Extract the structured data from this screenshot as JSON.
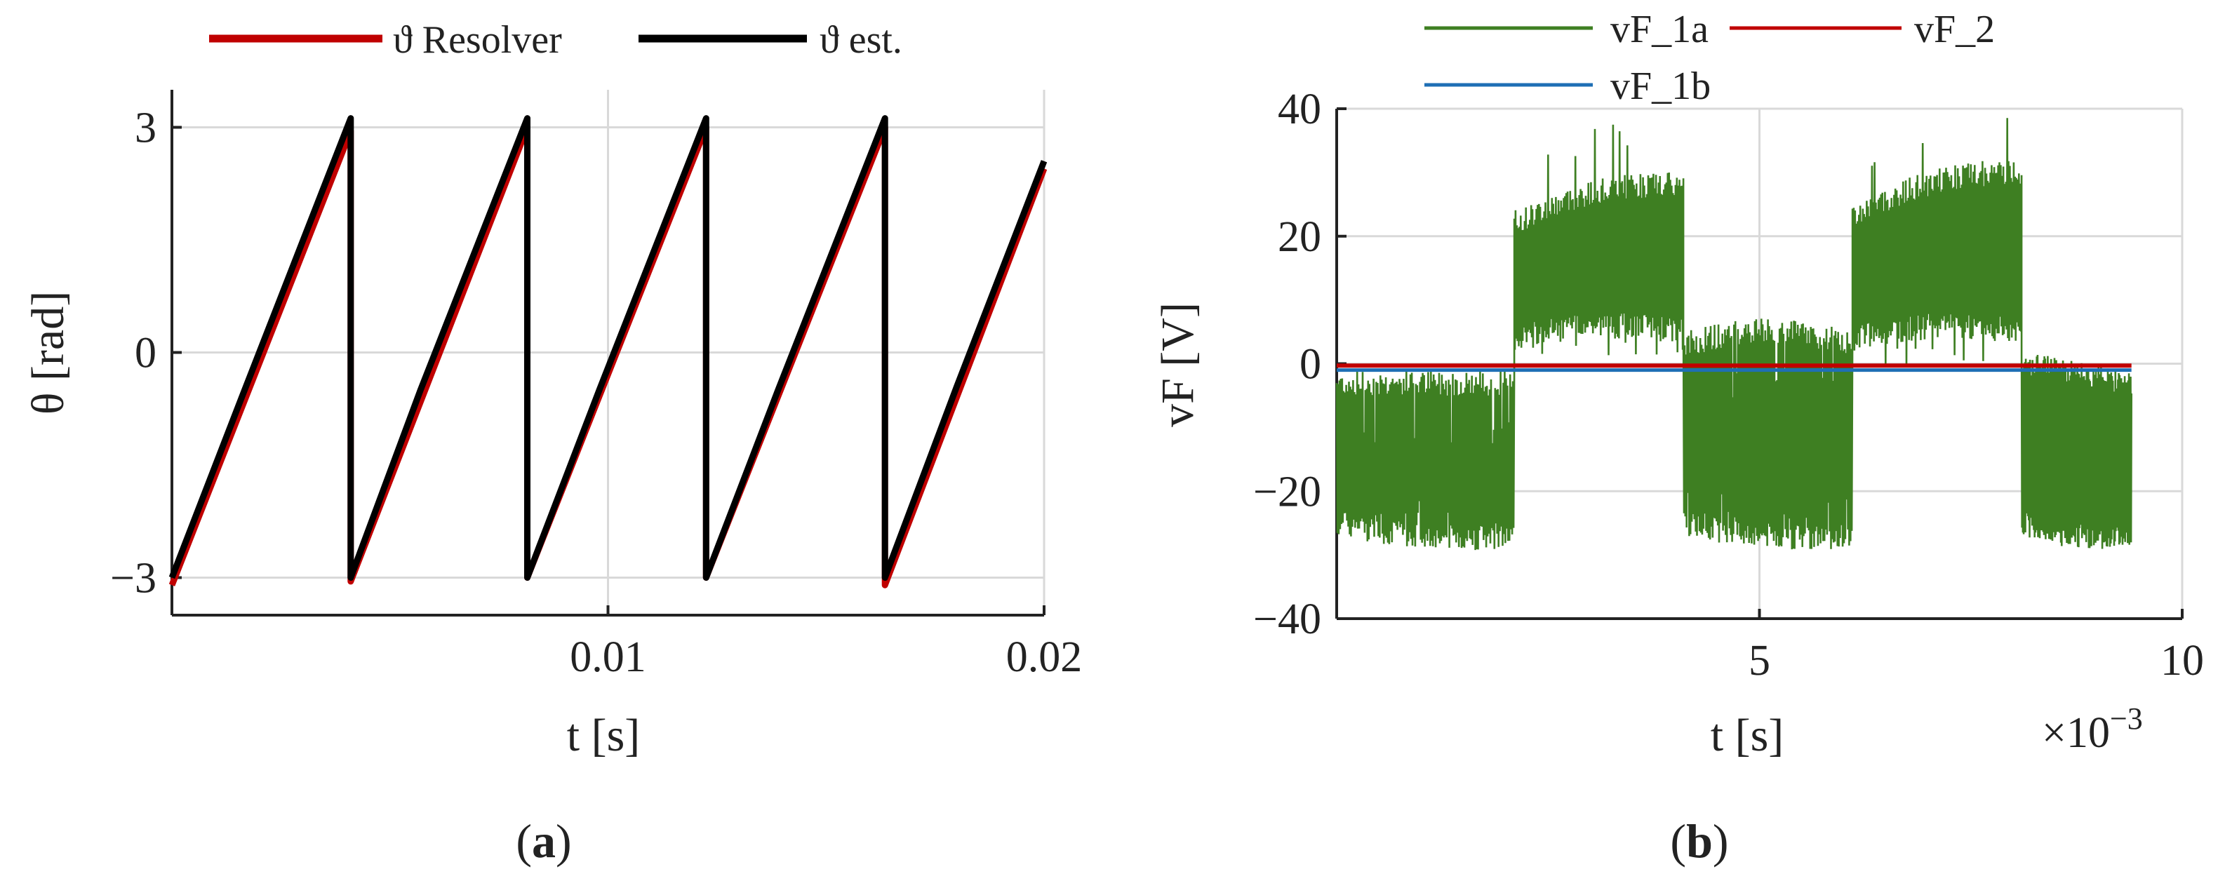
{
  "colors": {
    "resolver": "#c00000",
    "estimate": "#000000",
    "vF_1a": "#3e7f22",
    "vF_1b": "#1f6fb5",
    "vF_2": "#c00000",
    "grid": "#d9d9d9",
    "axis": "#222222"
  },
  "chart_data": [
    {
      "id": "a",
      "type": "line",
      "caption": {
        "open": "(",
        "letter": "a",
        "close": ")"
      },
      "xlabel": "t [s]",
      "ylabel": "θ [rad]",
      "xlim": [
        0,
        0.02
      ],
      "ylim": [
        -3.5,
        3.5
      ],
      "xticks": [
        0.01,
        0.02
      ],
      "xtick_labels": [
        "0.01",
        "0.02"
      ],
      "yticks": [
        -3,
        0,
        3
      ],
      "ytick_labels": [
        "−3",
        "0",
        "3"
      ],
      "grid": true,
      "legend": "top, horizontal, outside",
      "series": [
        {
          "name": "ϑ Resolver",
          "color_key": "resolver",
          "x": [
            0,
            0.0041,
            0.0041,
            0.00815,
            0.00815,
            0.01225,
            0.01225,
            0.01635,
            0.01635,
            0.02
          ],
          "y": [
            -3.1,
            2.95,
            -3.05,
            3.0,
            -3.0,
            3.0,
            -3.0,
            3.0,
            -3.1,
            2.45
          ]
        },
        {
          "name": "ϑ est.",
          "color_key": "estimate",
          "x": [
            0,
            0.0016,
            0.0041,
            0.0041,
            0.0057,
            0.00815,
            0.00815,
            0.0098,
            0.01225,
            0.01225,
            0.0139,
            0.01635,
            0.01635,
            0.018,
            0.02
          ],
          "y": [
            -3.0,
            -0.6,
            3.12,
            -3.0,
            -0.5,
            3.12,
            -3.0,
            -0.5,
            3.12,
            -3.0,
            -0.5,
            3.12,
            -3.0,
            -0.45,
            2.55
          ]
        }
      ]
    },
    {
      "id": "b",
      "type": "line",
      "caption": {
        "open": "(",
        "letter": "b",
        "close": ")"
      },
      "xlabel": "t [s]",
      "ylabel": "vF [V]",
      "x_multiplier": "×10",
      "x_exponent": "−3",
      "xlim": [
        0,
        10
      ],
      "ylim": [
        -40,
        40
      ],
      "xticks": [
        5,
        10
      ],
      "xtick_labels": [
        "5",
        "10"
      ],
      "yticks": [
        -40,
        -20,
        0,
        20,
        40
      ],
      "ytick_labels": [
        "−40",
        "−20",
        "0",
        "20",
        "40"
      ],
      "grid": true,
      "legend": "top, two columns, outside",
      "series": [
        {
          "name": "vF_1a",
          "color_key": "vF_1a",
          "description": "PWM-like square envelope: negative 0–2.1, positive 2.1–4.1, negative 4.1–6.1, positive 6.1–8.1, negative 8.1–9.4 (x10^-3 s)",
          "x": [
            0,
            2.1,
            2.1,
            4.1,
            4.1,
            6.1,
            6.1,
            8.1,
            8.1,
            9.4
          ],
          "upper": [
            -3,
            -3,
            22,
            28,
            3,
            3,
            23,
            30,
            0,
            -3
          ],
          "lower": [
            -25,
            -27,
            4,
            5,
            -25,
            -27,
            4,
            5,
            -25,
            -27
          ]
        },
        {
          "name": "vF_1b",
          "color_key": "vF_1b",
          "x": [
            0,
            9.4
          ],
          "y": [
            -1,
            -1
          ]
        },
        {
          "name": "vF_2",
          "color_key": "vF_2",
          "x": [
            0,
            9.4
          ],
          "y": [
            -0.3,
            -0.3
          ]
        }
      ]
    }
  ]
}
